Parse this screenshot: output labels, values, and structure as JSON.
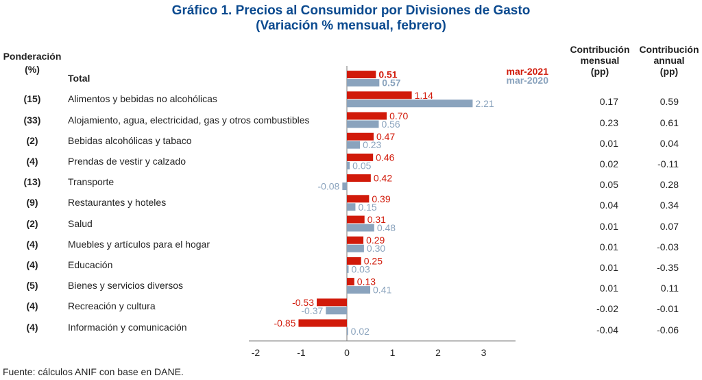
{
  "title_line1": "Gráfico 1. Precios al Consumidor por Divisiones de Gasto",
  "title_line2": "(Variación % mensual, febrero)",
  "headers": {
    "ponderacion": [
      "Ponderación",
      "(%)"
    ],
    "contrib_mensual": [
      "Contribución",
      "mensual",
      "(pp)"
    ],
    "contrib_annual": [
      "Contribución",
      "annual",
      "(pp)"
    ]
  },
  "colors": {
    "mar2021": "#d11a0a",
    "mar2020": "#8aa3bd",
    "title": "#0b4a8f",
    "axis": "#777777"
  },
  "source": "Fuente: cálculos ANIF con base en DANE.",
  "chart_data": {
    "type": "bar",
    "orientation": "horizontal",
    "title": "Gráfico 1. Precios al Consumidor por Divisiones de Gasto (Variación % mensual, febrero)",
    "xlabel": "",
    "ylabel": "",
    "xlim": [
      -2,
      3.7
    ],
    "xticks": [
      -2,
      -1,
      0,
      1,
      2,
      3
    ],
    "legend": {
      "placement": "top-right",
      "entries": [
        "mar-2021",
        "mar-2020"
      ]
    },
    "categories": [
      "Total",
      "Alimentos y bebidas no alcohólicas",
      "Alojamiento, agua, electricidad, gas y otros combustibles",
      "Bebidas alcohólicas y tabaco",
      "Prendas de vestir y calzado",
      "Transporte",
      "Restaurantes y hoteles",
      "Salud",
      "Muebles y artículos para el hogar",
      "Educación",
      "Bienes y servicios diversos",
      "Recreación y cultura",
      "Información y comunicación"
    ],
    "ponderacion": [
      "",
      "(15)",
      "(33)",
      "(2)",
      "(4)",
      "(13)",
      "(9)",
      "(2)",
      "(4)",
      "(4)",
      "(5)",
      "(4)",
      "(4)"
    ],
    "series": [
      {
        "name": "mar-2021",
        "values": [
          0.51,
          1.14,
          0.7,
          0.47,
          0.46,
          0.42,
          0.39,
          0.31,
          0.29,
          0.25,
          0.13,
          -0.53,
          -0.85
        ]
      },
      {
        "name": "mar-2020",
        "values": [
          0.57,
          2.21,
          0.56,
          0.23,
          0.05,
          -0.08,
          0.15,
          0.48,
          0.3,
          0.03,
          0.41,
          -0.37,
          0.02
        ]
      }
    ],
    "contribucion_mensual": [
      "",
      "0.17",
      "0.23",
      "0.01",
      "0.02",
      "0.05",
      "0.04",
      "0.01",
      "0.01",
      "0.01",
      "0.01",
      "-0.02",
      "-0.04"
    ],
    "contribucion_annual": [
      "",
      "0.59",
      "0.61",
      "0.04",
      "-0.11",
      "0.28",
      "0.34",
      "0.07",
      "-0.03",
      "-0.35",
      "0.11",
      "-0.01",
      "-0.06"
    ]
  }
}
